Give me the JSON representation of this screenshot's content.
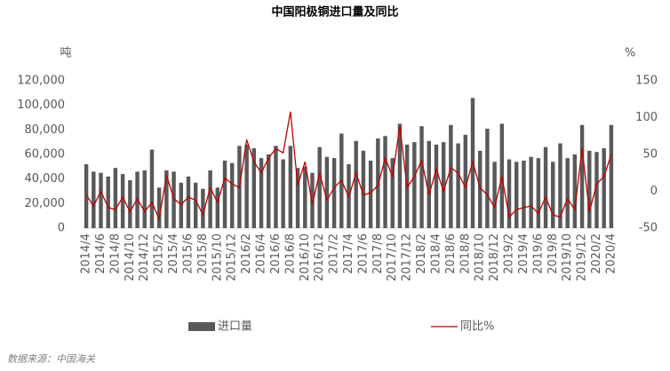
{
  "chart_data": {
    "type": "bar",
    "title": "中国阳极铜进口量及同比",
    "y_unit": "吨",
    "y2_unit": "%",
    "source": "数据来源：中国海关",
    "categories": [
      "2014/4",
      null,
      "2014/6",
      null,
      "2014/8",
      null,
      "2014/10",
      null,
      "2014/12",
      null,
      "2015/2",
      null,
      "2015/4",
      null,
      "2015/6",
      null,
      "2015/8",
      null,
      "2015/10",
      null,
      "2015/12",
      null,
      "2016/2",
      null,
      "2016/4",
      null,
      "2016/6",
      null,
      "2016/8",
      null,
      "2016/10",
      null,
      "2016/12",
      null,
      "2017/2",
      null,
      "2017/4",
      null,
      "2017/6",
      null,
      "2017/8",
      null,
      "2017/10",
      null,
      "2017/12",
      null,
      "2018/2",
      null,
      "2018/4",
      null,
      "2018/6",
      null,
      "2018/8",
      null,
      "2018/10",
      null,
      "2018/12",
      null,
      "2019/2",
      null,
      "2019/4",
      null,
      "2019/6",
      null,
      "2019/8",
      null,
      "2019/10",
      null,
      "2019/12",
      null,
      "2020/2",
      null,
      "2020/4"
    ],
    "series": [
      {
        "name": "进口量",
        "type": "bar",
        "color": "#595959",
        "values": [
          52000,
          46000,
          45000,
          42000,
          49000,
          44000,
          39000,
          46000,
          47000,
          64000,
          33000,
          47000,
          46000,
          37000,
          42000,
          37000,
          32000,
          47000,
          33000,
          55000,
          53000,
          67000,
          68000,
          65000,
          57000,
          60000,
          67000,
          56000,
          67000,
          49000,
          50000,
          45000,
          66000,
          58000,
          57000,
          77000,
          52000,
          71000,
          63000,
          55000,
          73000,
          75000,
          57000,
          85000,
          68000,
          70000,
          83000,
          71000,
          68000,
          70000,
          84000,
          69000,
          76000,
          106000,
          63000,
          81000,
          54000,
          85000,
          56000,
          54000,
          55000,
          58000,
          57000,
          66000,
          54000,
          69000,
          57000,
          60000,
          84000,
          63000,
          62000,
          65000,
          84000
        ]
      },
      {
        "name": "同比%",
        "type": "line",
        "axis": "y2",
        "color": "#c00000",
        "values": [
          -5,
          -20,
          0,
          -22,
          -25,
          -8,
          -28,
          -10,
          -28,
          -15,
          -38,
          22,
          -10,
          -18,
          -8,
          -12,
          -32,
          5,
          -15,
          18,
          10,
          5,
          70,
          40,
          25,
          45,
          58,
          52,
          108,
          8,
          40,
          -18,
          25,
          -12,
          5,
          15,
          -8,
          25,
          -5,
          -2,
          8,
          45,
          20,
          88,
          5,
          20,
          42,
          -5,
          30,
          0,
          32,
          25,
          5,
          40,
          5,
          -5,
          -22,
          20,
          -35,
          -25,
          -22,
          -20,
          -30,
          -8,
          -32,
          -35,
          -10,
          -25,
          58,
          -28,
          10,
          20,
          50
        ]
      }
    ],
    "ylim": [
      0,
      120000
    ],
    "yticks": [
      0,
      {
        "value": 20000,
        "label": "20,000"
      },
      {
        "value": 40000,
        "label": "40,000"
      },
      {
        "value": 60000,
        "label": "60,000"
      },
      {
        "value": 80000,
        "label": "80,000"
      },
      {
        "value": 100000,
        "label": "100,000"
      },
      {
        "value": 120000,
        "label": "120,000"
      }
    ],
    "y2lim": [
      -50,
      150
    ],
    "y2ticks": [
      -50,
      0,
      50,
      100,
      150
    ],
    "grid": false
  }
}
